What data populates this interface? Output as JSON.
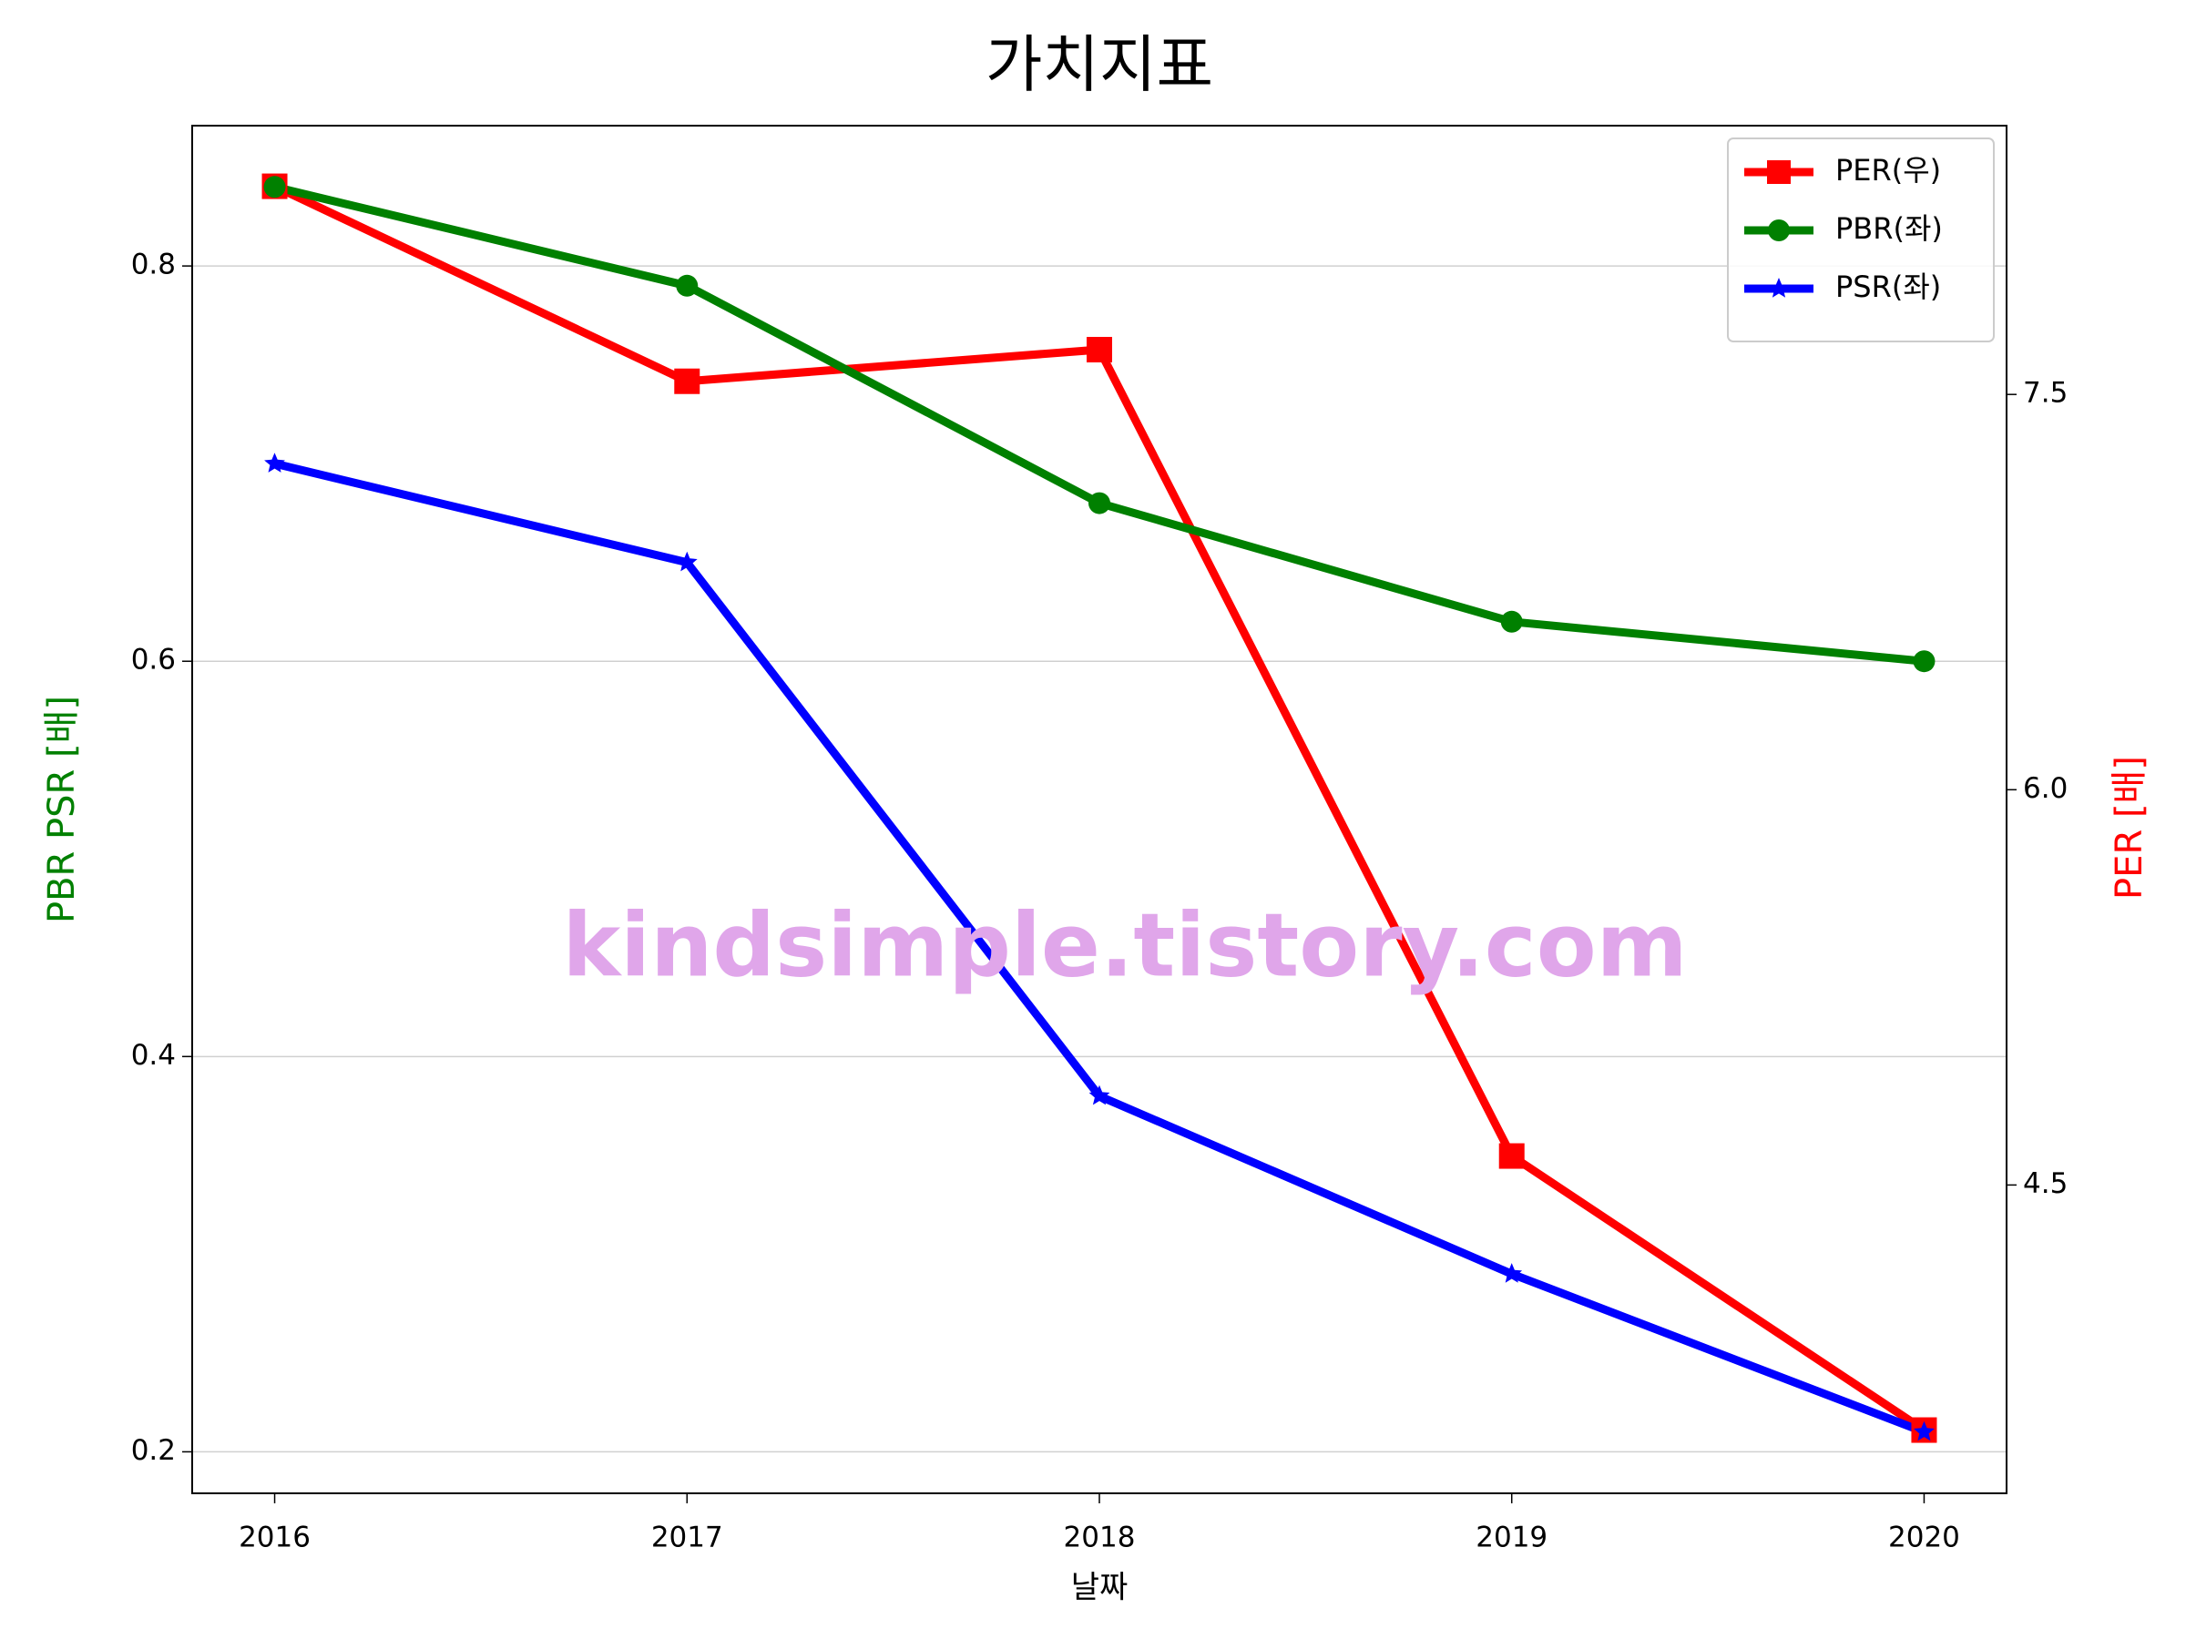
{
  "chart_data": {
    "type": "line",
    "title": "가치지표",
    "x_label": "날짜",
    "y_label": "PBR PSR [배]",
    "y_label_color": "green",
    "y2_label": "PER [배]",
    "y2_label_color": "red",
    "annotation": "kindsimple.tistory.com",
    "x": [
      2016,
      2017,
      2018,
      2019,
      2020
    ],
    "xlim": [
      2015.8,
      2020.2
    ],
    "xticks": [
      2016,
      2017,
      2018,
      2019,
      2020
    ],
    "ylim": [
      0.179,
      0.871
    ],
    "yticks": [
      0.2,
      0.4,
      0.6,
      0.8
    ],
    "y2lim": [
      3.33,
      8.52
    ],
    "y2ticks": [
      {
        "value": 4.5,
        "label": "4.5"
      },
      {
        "value": 6,
        "label": "6.0"
      },
      {
        "value": 7.5,
        "label": "7.5"
      }
    ],
    "grid": true,
    "legend": "upper right",
    "series": [
      {
        "name": "PER(우)",
        "color": "red",
        "marker": "square",
        "axis": "y2",
        "values": [
          8.29,
          7.55,
          7.67,
          4.61,
          3.57
        ]
      },
      {
        "name": "PBR(좌)",
        "color": "green",
        "marker": "circle",
        "values": [
          0.84,
          0.79,
          0.68,
          0.62,
          0.6
        ]
      },
      {
        "name": "PSR(좌)",
        "color": "blue",
        "marker": "star",
        "values": [
          0.7,
          0.65,
          0.38,
          0.29,
          0.21
        ]
      }
    ]
  }
}
